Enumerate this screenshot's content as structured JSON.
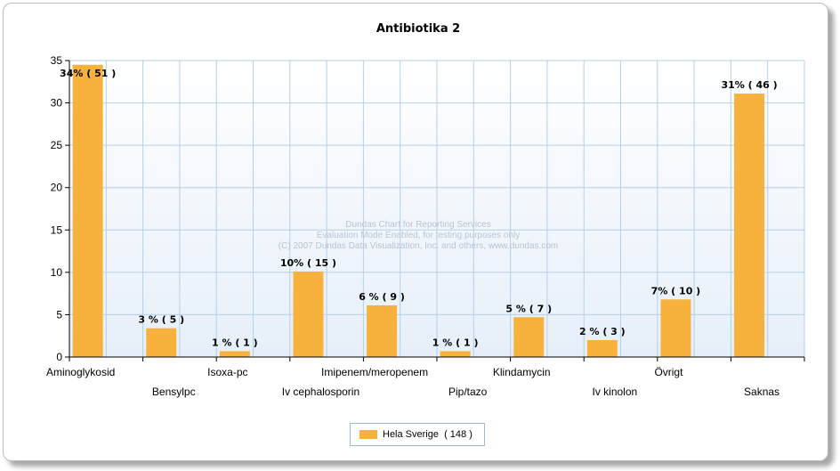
{
  "chart_data": {
    "type": "bar",
    "title": "Antibiotika 2",
    "categories": [
      "Aminoglykosid",
      "Bensylpc",
      "Isoxa-pc",
      "Iv cephalosporin",
      "Imipenem/meropenem",
      "Pip/tazo",
      "Klindamycin",
      "Iv kinolon",
      "Övrigt",
      "Saknas"
    ],
    "series": [
      {
        "name": "Hela Sverige  ( 148 )",
        "values": [
          34.5,
          3.4,
          0.7,
          10.1,
          6.1,
          0.7,
          4.7,
          2.0,
          6.8,
          31.1
        ],
        "labels": [
          "34% ( 51 )",
          "3 % ( 5 )",
          "1 % ( 1 )",
          "10% ( 15 )",
          "6 % ( 9 )",
          "1 % ( 1 )",
          "5 % ( 7 )",
          "2 % ( 3 )",
          "7% ( 10 )",
          "31% ( 46 )"
        ]
      }
    ],
    "ylim": [
      0,
      35
    ],
    "yticks": [
      0,
      5,
      10,
      15,
      20,
      25,
      30,
      35
    ],
    "grid": true,
    "legend_position": "bottom-center",
    "bar_color": "#F7B23E"
  },
  "watermark": {
    "line1": "Dundas Chart for Reporting Services",
    "line2": "Evaluation Mode Enabled, for testing purposes only",
    "line3": "(C) 2007 Dundas Data Visualization, Inc. and others, www.dundas.com"
  }
}
